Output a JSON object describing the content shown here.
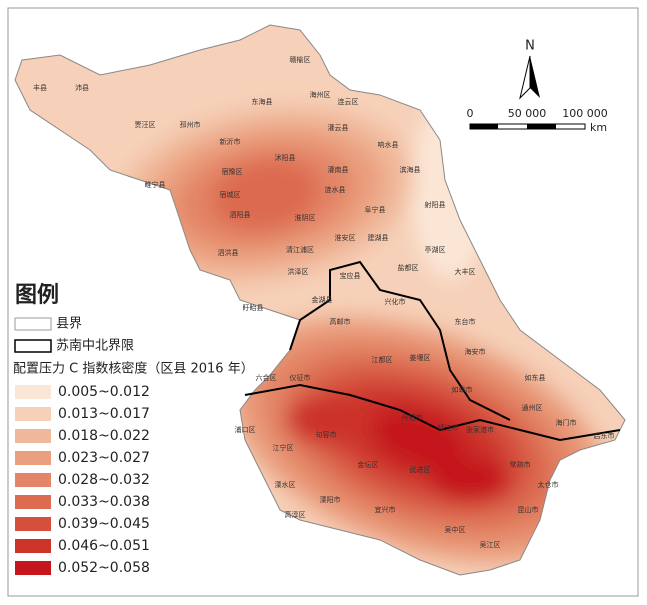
{
  "legend": {
    "title": "图例",
    "county_boundary": "县界",
    "region_boundary": "苏南中北界限",
    "density_title": "配置压力 C 指数核密度（区县 2016 年）",
    "classes": [
      {
        "label": "0.005~0.012",
        "color": "#fbe6d6"
      },
      {
        "label": "0.013~0.017",
        "color": "#f6d0b8"
      },
      {
        "label": "0.018~0.022",
        "color": "#f0b89a"
      },
      {
        "label": "0.023~0.027",
        "color": "#ea9f7e"
      },
      {
        "label": "0.028~0.032",
        "color": "#e38566"
      },
      {
        "label": "0.033~0.038",
        "color": "#dc6b50"
      },
      {
        "label": "0.039~0.045",
        "color": "#d4503c"
      },
      {
        "label": "0.046~0.051",
        "color": "#cc3329"
      },
      {
        "label": "0.052~0.058",
        "color": "#c4161c"
      }
    ]
  },
  "north_arrow": "N",
  "scale_bar": {
    "ticks": [
      "0",
      "50 000",
      "100 000"
    ],
    "unit": "km"
  },
  "place_labels": [
    "丰县",
    "沛县",
    "赣榆区",
    "海州区",
    "连云区",
    "东海县",
    "贾汪区",
    "邳州市",
    "灌云县",
    "响水县",
    "新沂市",
    "灌南县",
    "滨海县",
    "沭阳县",
    "睢宁县",
    "宿豫区",
    "宿城区",
    "涟水县",
    "阜宁县",
    "射阳县",
    "泗阳县",
    "淮阴区",
    "淮安区",
    "建湖县",
    "泗洪县",
    "清江浦区",
    "亭湖区",
    "洪泽区",
    "宝应县",
    "盐都区",
    "大丰区",
    "金湖县",
    "盱眙县",
    "兴化市",
    "东台市",
    "高邮市",
    "江都区",
    "姜堰区",
    "海安市",
    "六合区",
    "仪征市",
    "如皋市",
    "如东县",
    "靖江市",
    "通州区",
    "海门市",
    "启东市",
    "句容市",
    "丹阳市",
    "江宁区",
    "金坛区",
    "溧水区",
    "武进区",
    "张家港市",
    "常熟市",
    "太仓市",
    "溧阳市",
    "宜兴市",
    "昆山市",
    "吴中区",
    "高淳区",
    "吴江区",
    "浦口区"
  ]
}
